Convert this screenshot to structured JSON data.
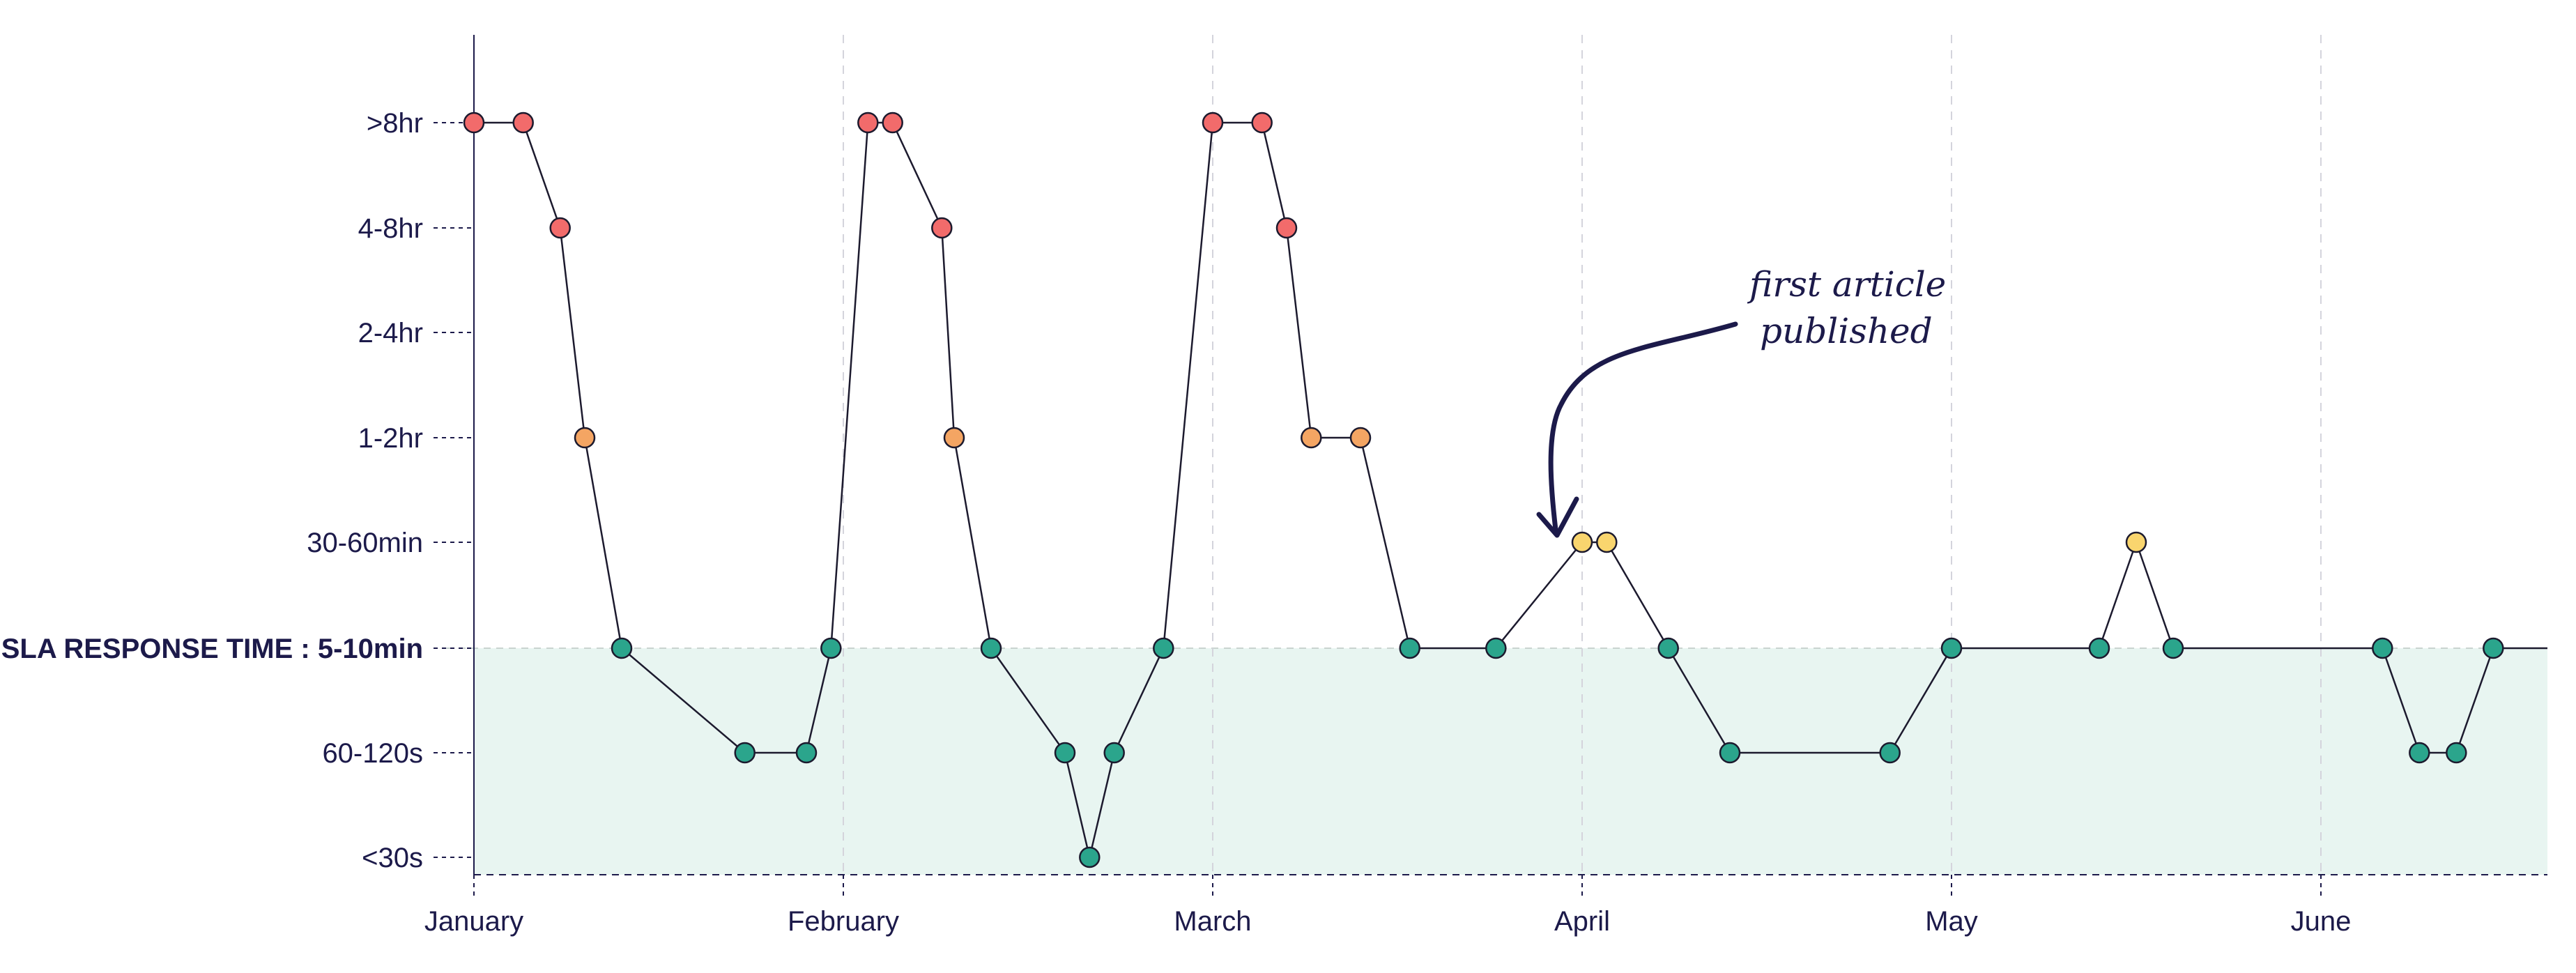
{
  "chart_data": {
    "type": "line",
    "xlabel": "",
    "ylabel": "",
    "x_ticks": [
      "January",
      "February",
      "March",
      "April",
      "May",
      "June"
    ],
    "y_categories": [
      "<30s",
      "60-120s",
      "SLA RESPONSE TIME : 5-10min",
      "30-60min",
      "1-2hr",
      "2-4hr",
      "4-8hr",
      ">8hr"
    ],
    "sla_category": "SLA RESPONSE TIME : 5-10min",
    "grid": "vertical dashed at month ticks",
    "annotation": {
      "line1": "first article",
      "line2": "published",
      "points_to": "April"
    },
    "colors": {
      "red": "#f26b6b",
      "orange": "#f4a563",
      "yellow": "#f9d56e",
      "green": "#2ba58c",
      "sla_band": "#e8f5f1",
      "axis": "#1c1a4a"
    },
    "points": [
      {
        "x": "Jan 1",
        "y": ">8hr",
        "color": "red"
      },
      {
        "x": "Jan 5",
        "y": ">8hr",
        "color": "red"
      },
      {
        "x": "Jan 8",
        "y": "4-8hr",
        "color": "red"
      },
      {
        "x": "Jan 10",
        "y": "1-2hr",
        "color": "orange"
      },
      {
        "x": "Jan 13",
        "y": "SLA RESPONSE TIME : 5-10min",
        "color": "green"
      },
      {
        "x": "Jan 23",
        "y": "60-120s",
        "color": "green"
      },
      {
        "x": "Jan 28",
        "y": "60-120s",
        "color": "green"
      },
      {
        "x": "Jan 30",
        "y": "SLA RESPONSE TIME : 5-10min",
        "color": "green"
      },
      {
        "x": "Feb 3",
        "y": ">8hr",
        "color": "red"
      },
      {
        "x": "Feb 5",
        "y": ">8hr",
        "color": "red"
      },
      {
        "x": "Feb 9",
        "y": "4-8hr",
        "color": "red"
      },
      {
        "x": "Feb 10",
        "y": "1-2hr",
        "color": "orange"
      },
      {
        "x": "Feb 13",
        "y": "SLA RESPONSE TIME : 5-10min",
        "color": "green"
      },
      {
        "x": "Feb 19",
        "y": "60-120s",
        "color": "green"
      },
      {
        "x": "Feb 21",
        "y": "<30s",
        "color": "green"
      },
      {
        "x": "Feb 23",
        "y": "60-120s",
        "color": "green"
      },
      {
        "x": "Feb 27",
        "y": "SLA RESPONSE TIME : 5-10min",
        "color": "green"
      },
      {
        "x": "Mar 1",
        "y": ">8hr",
        "color": "red"
      },
      {
        "x": "Mar 5",
        "y": ">8hr",
        "color": "red"
      },
      {
        "x": "Mar 7",
        "y": "4-8hr",
        "color": "red"
      },
      {
        "x": "Mar 9",
        "y": "1-2hr",
        "color": "orange"
      },
      {
        "x": "Mar 13",
        "y": "1-2hr",
        "color": "orange"
      },
      {
        "x": "Mar 17",
        "y": "SLA RESPONSE TIME : 5-10min",
        "color": "green"
      },
      {
        "x": "Mar 24",
        "y": "SLA RESPONSE TIME : 5-10min",
        "color": "green"
      },
      {
        "x": "Mar 31",
        "y": "30-60min",
        "color": "yellow"
      },
      {
        "x": "Apr 3",
        "y": "30-60min",
        "color": "yellow"
      },
      {
        "x": "Apr 8",
        "y": "SLA RESPONSE TIME : 5-10min",
        "color": "green"
      },
      {
        "x": "Apr 13",
        "y": "60-120s",
        "color": "green"
      },
      {
        "x": "Apr 26",
        "y": "60-120s",
        "color": "green"
      },
      {
        "x": "May 1",
        "y": "SLA RESPONSE TIME : 5-10min",
        "color": "green"
      },
      {
        "x": "May 13",
        "y": "SLA RESPONSE TIME : 5-10min",
        "color": "green"
      },
      {
        "x": "May 16",
        "y": "30-60min",
        "color": "yellow"
      },
      {
        "x": "May 19",
        "y": "SLA RESPONSE TIME : 5-10min",
        "color": "green"
      },
      {
        "x": "Jun 6",
        "y": "SLA RESPONSE TIME : 5-10min",
        "color": "green"
      },
      {
        "x": "Jun 9",
        "y": "60-120s",
        "color": "green"
      },
      {
        "x": "Jun 12",
        "y": "60-120s",
        "color": "green"
      },
      {
        "x": "Jun 15",
        "y": "SLA RESPONSE TIME : 5-10min",
        "color": "green"
      }
    ]
  }
}
